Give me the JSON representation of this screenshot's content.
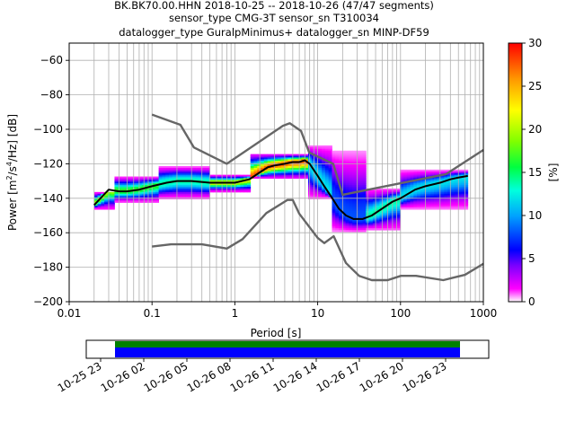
{
  "header": {
    "line1": "BK.BK70.00.HHN   2018-10-25 -- 2018-10-26  (47/47 segments)",
    "line2": "sensor_type CMG-3T sensor_sn T310034",
    "line3": "datalogger_type GuralpMinimus+ datalogger_sn MINP-DF59"
  },
  "chart_data": [
    {
      "type": "heatmap",
      "title": "BK.BK70.00.HHN   2018-10-25 -- 2018-10-26  (47/47 segments)",
      "xlabel": "Period [s]",
      "ylabel_parts": [
        "Power [m",
        "2",
        "/s",
        "4",
        "/Hz] [dB]"
      ],
      "x_scale": "log",
      "xlim": [
        0.01,
        1000
      ],
      "ylim": [
        -200,
        -50
      ],
      "x_ticks": [
        0.01,
        0.1,
        1,
        10,
        100,
        1000
      ],
      "x_tick_labels": [
        "0.01",
        "0.1",
        "1",
        "10",
        "100",
        "1000"
      ],
      "y_ticks": [
        -200,
        -180,
        -160,
        -140,
        -120,
        -100,
        -80,
        -60
      ],
      "y_tick_labels": [
        "−200",
        "−180",
        "−160",
        "−140",
        "−120",
        "−100",
        "−80",
        "−60"
      ],
      "grid": true,
      "colorbar": {
        "label": "[%]",
        "range": [
          0,
          30
        ],
        "ticks": [
          0,
          5,
          10,
          15,
          20,
          25,
          30
        ],
        "tick_labels": [
          "0",
          "5",
          "10",
          "15",
          "20",
          "25",
          "30"
        ]
      },
      "series": [
        {
          "style": "mean",
          "color": "#000000",
          "points": [
            [
              0.02,
              -144
            ],
            [
              0.025,
              -139
            ],
            [
              0.03,
              -135
            ],
            [
              0.04,
              -136
            ],
            [
              0.05,
              -136
            ],
            [
              0.07,
              -135
            ],
            [
              0.1,
              -133
            ],
            [
              0.15,
              -131
            ],
            [
              0.2,
              -130
            ],
            [
              0.3,
              -130
            ],
            [
              0.5,
              -131
            ],
            [
              0.7,
              -131
            ],
            [
              1,
              -131
            ],
            [
              1.5,
              -129
            ],
            [
              2,
              -125
            ],
            [
              2.5,
              -122
            ],
            [
              3,
              -121
            ],
            [
              4,
              -120
            ],
            [
              5,
              -119
            ],
            [
              6,
              -119
            ],
            [
              7,
              -118
            ],
            [
              8,
              -120
            ],
            [
              10,
              -127
            ],
            [
              12,
              -133
            ],
            [
              15,
              -140
            ],
            [
              18,
              -146
            ],
            [
              22,
              -150
            ],
            [
              27,
              -152
            ],
            [
              35,
              -152
            ],
            [
              45,
              -150
            ],
            [
              60,
              -146
            ],
            [
              80,
              -142
            ],
            [
              100,
              -140
            ],
            [
              150,
              -135
            ],
            [
              200,
              -133
            ],
            [
              300,
              -131
            ],
            [
              400,
              -129
            ],
            [
              500,
              -128
            ],
            [
              650,
              -127
            ]
          ]
        },
        {
          "style": "noise_model_upper",
          "color": "#666666",
          "points": [
            [
              0.1,
              -91.5
            ],
            [
              0.22,
              -97.4
            ],
            [
              0.32,
              -110.5
            ],
            [
              0.8,
              -120
            ],
            [
              3.8,
              -98
            ],
            [
              4.6,
              -96.5
            ],
            [
              6.3,
              -101
            ],
            [
              7.9,
              -113.5
            ],
            [
              15.4,
              -120
            ],
            [
              20,
              -138
            ],
            [
              354.8,
              -126
            ],
            [
              1000,
              -112
            ]
          ]
        },
        {
          "style": "noise_model_lower",
          "color": "#666666",
          "points": [
            [
              0.1,
              -168
            ],
            [
              0.17,
              -166.7
            ],
            [
              0.4,
              -166.7
            ],
            [
              0.8,
              -169.2
            ],
            [
              1.24,
              -163.7
            ],
            [
              2.4,
              -148.6
            ],
            [
              4.3,
              -141
            ],
            [
              5,
              -141
            ],
            [
              6,
              -149
            ],
            [
              10,
              -163
            ],
            [
              12,
              -166
            ],
            [
              15.6,
              -162
            ],
            [
              21.9,
              -177.5
            ],
            [
              31.6,
              -185
            ],
            [
              45,
              -187.5
            ],
            [
              70,
              -187.5
            ],
            [
              101,
              -185
            ],
            [
              154,
              -185
            ],
            [
              328,
              -187.5
            ],
            [
              600,
              -184.4
            ],
            [
              1000,
              -178
            ]
          ]
        }
      ],
      "heatmap_bands": [
        {
          "period": [
            0.02,
            0.035
          ],
          "power": [
            -146,
            -137
          ],
          "peak_percent": 20
        },
        {
          "period": [
            0.035,
            0.12
          ],
          "power": [
            -142,
            -128
          ],
          "peak_percent": 17
        },
        {
          "period": [
            0.12,
            0.5
          ],
          "power": [
            -140,
            -122
          ],
          "peak_percent": 14
        },
        {
          "period": [
            0.5,
            1.5
          ],
          "power": [
            -136,
            -127
          ],
          "peak_percent": 22
        },
        {
          "period": [
            1.5,
            8
          ],
          "power": [
            -128,
            -115
          ],
          "peak_percent": 28
        },
        {
          "period": [
            8,
            15
          ],
          "power": [
            -140,
            -110
          ],
          "peak_percent": 12
        },
        {
          "period": [
            15,
            40
          ],
          "power": [
            -160,
            -112
          ],
          "peak_percent": 8
        },
        {
          "period": [
            40,
            100
          ],
          "power": [
            -158,
            -135
          ],
          "peak_percent": 14
        },
        {
          "period": [
            100,
            650
          ],
          "power": [
            -146,
            -124
          ],
          "peak_percent": 12
        }
      ]
    },
    {
      "type": "bar",
      "title": "",
      "xlabel": "",
      "ylabel": "",
      "x_range": [
        "2018-10-25 22:00",
        "2018-10-27 02:00"
      ],
      "x_tick_labels": [
        "10-25 23",
        "10-26 02",
        "10-26 05",
        "10-26 08",
        "10-26 11",
        "10-26 14",
        "10-26 17",
        "10-26 20",
        "10-26 23"
      ],
      "x_ticks_hours_from_2018-10-25_23": [
        0,
        3,
        6,
        9,
        12,
        15,
        18,
        21,
        24
      ],
      "data_coverage": {
        "start": "2018-10-26 00:00",
        "end": "2018-10-27 00:00",
        "color": "#0000ff"
      },
      "psd_coverage": {
        "start": "2018-10-26 00:00",
        "end": "2018-10-27 00:00",
        "color": "#008000"
      }
    }
  ]
}
